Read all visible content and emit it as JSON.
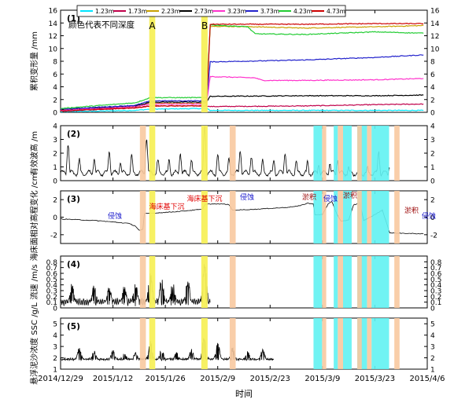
{
  "chart_data": [
    {
      "type": "line",
      "panel_label": "(1)",
      "note": "颜色代表不同深度",
      "ylabel": "累积变形量 /mm",
      "ylim": [
        0,
        16
      ],
      "yticks": [
        0,
        2,
        4,
        6,
        8,
        10,
        12,
        14,
        16
      ],
      "annotations": [
        {
          "text": "A",
          "x": 24.5
        },
        {
          "text": "B",
          "x": 38.5
        }
      ],
      "series": [
        {
          "name": "1.23m",
          "color": "#00e5ff",
          "points": [
            [
              0,
              0.1
            ],
            [
              20,
              0.3
            ],
            [
              24,
              0.5
            ],
            [
              39,
              0.6
            ],
            [
              40,
              0.3
            ],
            [
              65,
              0.3
            ],
            [
              84,
              0.3
            ],
            [
              97,
              0.3
            ]
          ]
        },
        {
          "name": "1.73m",
          "color": "#c0004a",
          "points": [
            [
              0,
              0.2
            ],
            [
              20,
              0.7
            ],
            [
              24,
              1.0
            ],
            [
              39,
              1.0
            ],
            [
              40,
              0.9
            ],
            [
              65,
              1.0
            ],
            [
              84,
              1.2
            ],
            [
              97,
              1.3
            ]
          ]
        },
        {
          "name": "2.23m",
          "color": "#c8a000",
          "points": [
            [
              0,
              0.3
            ],
            [
              20,
              0.9
            ],
            [
              24,
              1.4
            ],
            [
              39,
              1.4
            ],
            [
              40,
              13.5
            ],
            [
              52,
              13.4
            ],
            [
              65,
              13.2
            ],
            [
              84,
              13.4
            ],
            [
              97,
              13.6
            ]
          ]
        },
        {
          "name": "2.73m",
          "color": "#000000",
          "points": [
            [
              0,
              0.4
            ],
            [
              20,
              1.0
            ],
            [
              24,
              1.6
            ],
            [
              39,
              1.6
            ],
            [
              40,
              2.5
            ],
            [
              65,
              2.6
            ],
            [
              84,
              2.6
            ],
            [
              97,
              2.7
            ]
          ]
        },
        {
          "name": "3.23m",
          "color": "#ff33cc",
          "points": [
            [
              0,
              0.3
            ],
            [
              20,
              0.9
            ],
            [
              24,
              1.3
            ],
            [
              39,
              1.3
            ],
            [
              40,
              5.6
            ],
            [
              52,
              5.4
            ],
            [
              54,
              5.0
            ],
            [
              65,
              5.0
            ],
            [
              84,
              5.1
            ],
            [
              97,
              5.3
            ]
          ]
        },
        {
          "name": "3.73m",
          "color": "#2222cc",
          "points": [
            [
              0,
              0.5
            ],
            [
              20,
              1.1
            ],
            [
              24,
              1.8
            ],
            [
              39,
              1.8
            ],
            [
              40,
              7.9
            ],
            [
              65,
              8.2
            ],
            [
              84,
              8.6
            ],
            [
              97,
              9.0
            ]
          ]
        },
        {
          "name": "4.23m",
          "color": "#22cc33",
          "points": [
            [
              0,
              0.6
            ],
            [
              20,
              1.5
            ],
            [
              24,
              2.3
            ],
            [
              39,
              2.3
            ],
            [
              40,
              13.7
            ],
            [
              50,
              13.4
            ],
            [
              52,
              12.3
            ],
            [
              65,
              12.2
            ],
            [
              84,
              12.6
            ],
            [
              97,
              12.4
            ]
          ]
        },
        {
          "name": "4.73m",
          "color": "#cc0000",
          "points": [
            [
              0,
              0.2
            ],
            [
              20,
              0.7
            ],
            [
              24,
              1.0
            ],
            [
              39,
              1.0
            ],
            [
              40,
              13.8
            ],
            [
              65,
              13.8
            ],
            [
              84,
              13.9
            ],
            [
              97,
              13.9
            ]
          ]
        }
      ]
    },
    {
      "type": "line",
      "panel_label": "(2)",
      "ylabel": "有效波高 /m",
      "ylim": [
        0,
        4
      ],
      "yticks": [
        0,
        1,
        2,
        3,
        4
      ],
      "series": [
        {
          "name": "",
          "color": "#000000",
          "peaks": [
            [
              2,
              2.6
            ],
            [
              5,
              1.6
            ],
            [
              9,
              1.5
            ],
            [
              13,
              2.0
            ],
            [
              16,
              1.3
            ],
            [
              19,
              1.9
            ],
            [
              23,
              3.0
            ],
            [
              26,
              1.6
            ],
            [
              29,
              1.5
            ],
            [
              32,
              1.9
            ],
            [
              35,
              1.5
            ],
            [
              38.5,
              4.0
            ],
            [
              42,
              1.9
            ],
            [
              45,
              1.6
            ],
            [
              48,
              2.1
            ],
            [
              51,
              1.7
            ],
            [
              54,
              1.5
            ],
            [
              57,
              1.5
            ],
            [
              60,
              2.0
            ],
            [
              63,
              1.5
            ],
            [
              66,
              1.4
            ],
            [
              69,
              1.1
            ],
            [
              72,
              1.2
            ],
            [
              74,
              1.5
            ],
            [
              77,
              1.0
            ],
            [
              80,
              1.2
            ],
            [
              82,
              1.1
            ],
            [
              85,
              2.1
            ],
            [
              88,
              1.0
            ]
          ]
        }
      ]
    },
    {
      "type": "line",
      "panel_label": "(3)",
      "ylabel": "海床面相对高程变化 /cm",
      "ylim": [
        -3,
        3
      ],
      "yticks": [
        -2,
        0,
        2
      ],
      "annotations": [
        {
          "text": "侵蚀",
          "color": "#1a1acc"
        },
        {
          "text": "海床基下沉",
          "color": "#e00000"
        },
        {
          "text": "海床基下沉",
          "color": "#e00000"
        },
        {
          "text": "侵蚀",
          "color": "#1a1acc"
        },
        {
          "text": "淤积",
          "color": "#990000"
        },
        {
          "text": "侵蚀",
          "color": "#1a1acc"
        },
        {
          "text": "淤积",
          "color": "#990000"
        },
        {
          "text": "淤积",
          "color": "#990000"
        },
        {
          "text": "侵蚀",
          "color": "#1a1acc"
        }
      ],
      "series": [
        {
          "name": "",
          "color": "#000000",
          "points": [
            [
              0,
              -0.2
            ],
            [
              10,
              -0.4
            ],
            [
              18,
              -0.7
            ],
            [
              20,
              -1.0
            ],
            [
              21,
              -1.5
            ],
            [
              22,
              -1.4
            ],
            [
              22.4,
              0.4
            ],
            [
              30,
              0.6
            ],
            [
              38,
              0.9
            ],
            [
              38.6,
              1.5
            ],
            [
              44,
              1.5
            ],
            [
              45,
              1.4
            ],
            [
              46,
              0.8
            ],
            [
              52,
              0.9
            ],
            [
              60,
              1.1
            ],
            [
              64,
              1.3
            ],
            [
              66,
              1.6
            ],
            [
              67.5,
              1.5
            ],
            [
              68,
              0.3
            ],
            [
              70,
              0.3
            ],
            [
              71.5,
              1.5
            ],
            [
              72.5,
              1.8
            ],
            [
              74,
              0.2
            ],
            [
              75,
              -0.5
            ],
            [
              77,
              -0.3
            ],
            [
              78.3,
              1.4
            ],
            [
              80,
              1.6
            ],
            [
              81,
              -0.4
            ],
            [
              84,
              0.3
            ],
            [
              86,
              0.8
            ],
            [
              88,
              -1.8
            ],
            [
              97,
              -1.9
            ]
          ]
        }
      ]
    },
    {
      "type": "line",
      "panel_label": "(4)",
      "ylabel": "流速 /m/s",
      "ylim": [
        0,
        0.9
      ],
      "yticks": [
        0,
        0.1,
        0.2,
        0.3,
        0.4,
        0.5,
        0.6,
        0.7,
        0.8
      ],
      "series": [
        {
          "name": "",
          "color": "#000000",
          "range": [
            0,
            40
          ],
          "base": 0.08,
          "spikes": [
            [
              3,
              0.45
            ],
            [
              9,
              0.45
            ],
            [
              13,
              0.4
            ],
            [
              17,
              0.4
            ],
            [
              20,
              0.48
            ],
            [
              24,
              0.62
            ],
            [
              27,
              0.55
            ],
            [
              30,
              0.5
            ],
            [
              34,
              0.52
            ],
            [
              38.5,
              0.83
            ]
          ]
        }
      ]
    },
    {
      "type": "line",
      "panel_label": "(5)",
      "ylabel": "悬浮泥沙浓度 SSC /g/L",
      "ylim": [
        1,
        5.5
      ],
      "yticks": [
        1,
        2,
        3,
        4,
        5
      ],
      "xlabel": "时间",
      "xticks": [
        "2014/12/29",
        "2015/1/12",
        "2015/1/26",
        "2015/2/9",
        "2015/2/23",
        "2015/3/9",
        "2015/3/23",
        "2015/4/6"
      ],
      "xtick_days": [
        0,
        14,
        28,
        42,
        56,
        70,
        84,
        98
      ],
      "series": [
        {
          "name": "",
          "color": "#000000",
          "range": [
            0,
            57
          ],
          "base": 1.8,
          "spikes": [
            [
              5,
              2.9
            ],
            [
              9,
              2.8
            ],
            [
              14,
              2.7
            ],
            [
              17,
              2.6
            ],
            [
              20,
              2.5
            ],
            [
              24,
              3.5
            ],
            [
              27,
              2.8
            ],
            [
              31,
              2.6
            ],
            [
              35,
              2.8
            ],
            [
              38.5,
              4.5
            ],
            [
              42,
              3.4
            ],
            [
              46,
              3.0
            ],
            [
              50,
              2.9
            ],
            [
              54,
              2.8
            ]
          ]
        }
      ]
    }
  ],
  "shading": {
    "yellow": {
      "color": "#f7f05a",
      "intervals": [
        [
          23.7,
          25.3
        ],
        [
          37.6,
          39.3
        ]
      ]
    },
    "orange": {
      "color": "#f8c9a0",
      "intervals": [
        [
          21.2,
          22.8
        ],
        [
          45.2,
          46.8
        ],
        [
          69.9,
          71.0
        ],
        [
          74.1,
          75.5
        ],
        [
          79.3,
          80.5
        ],
        [
          81.9,
          83.1
        ],
        [
          89.2,
          90.6
        ]
      ]
    },
    "cyan": {
      "color": "#60f2f2",
      "intervals": [
        [
          67.6,
          69.9
        ],
        [
          73.0,
          74.1
        ],
        [
          75.5,
          77.8
        ],
        [
          79.3,
          81.9
        ],
        [
          83.1,
          87.8
        ]
      ]
    }
  }
}
